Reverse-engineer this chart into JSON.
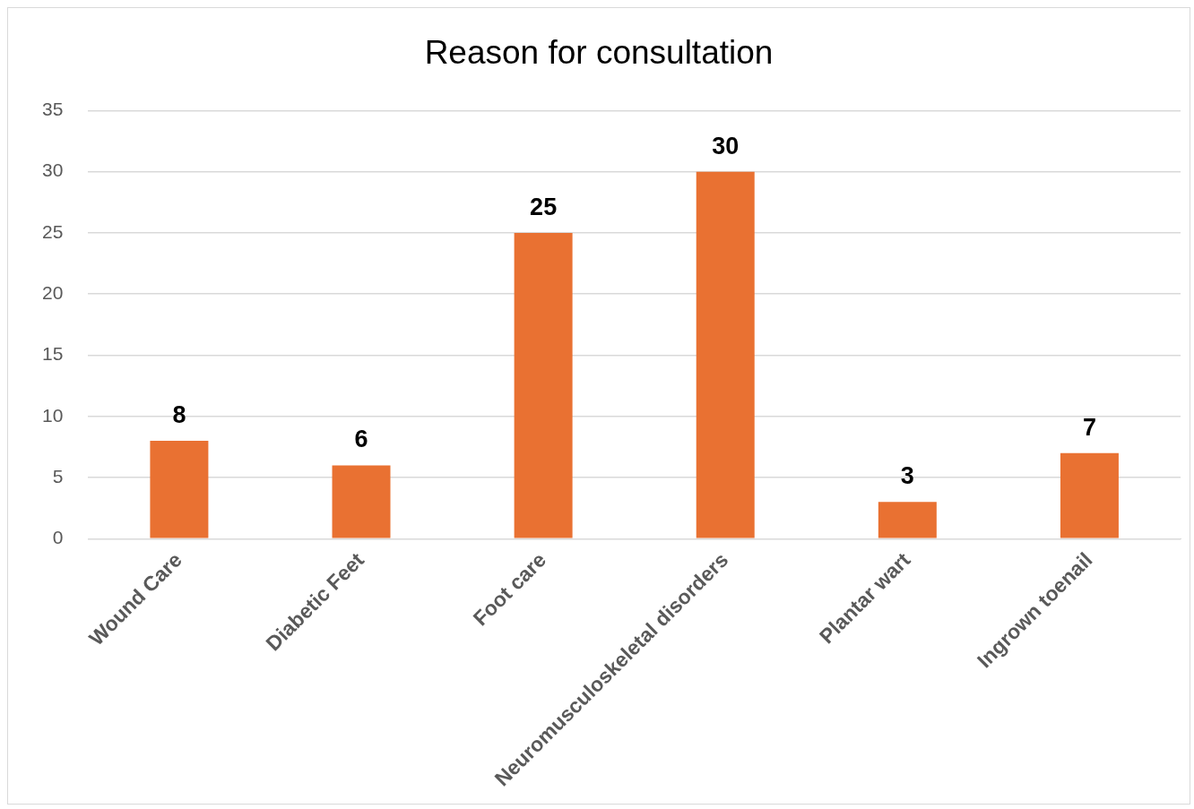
{
  "chart_data": {
    "type": "bar",
    "title": "Reason for consultation",
    "categories": [
      "Wound Care",
      "Diabetic Feet",
      "Foot care",
      "Neuromusculoskeletal disorders",
      "Plantar wart",
      "Ingrown toenail"
    ],
    "values": [
      8,
      6,
      25,
      30,
      3,
      7
    ],
    "color": "#e97132",
    "ylim": [
      0,
      35
    ],
    "yticks": [
      0,
      5,
      10,
      15,
      20,
      25,
      30,
      35
    ],
    "grid": "y",
    "legend": false,
    "data_labels": true
  }
}
